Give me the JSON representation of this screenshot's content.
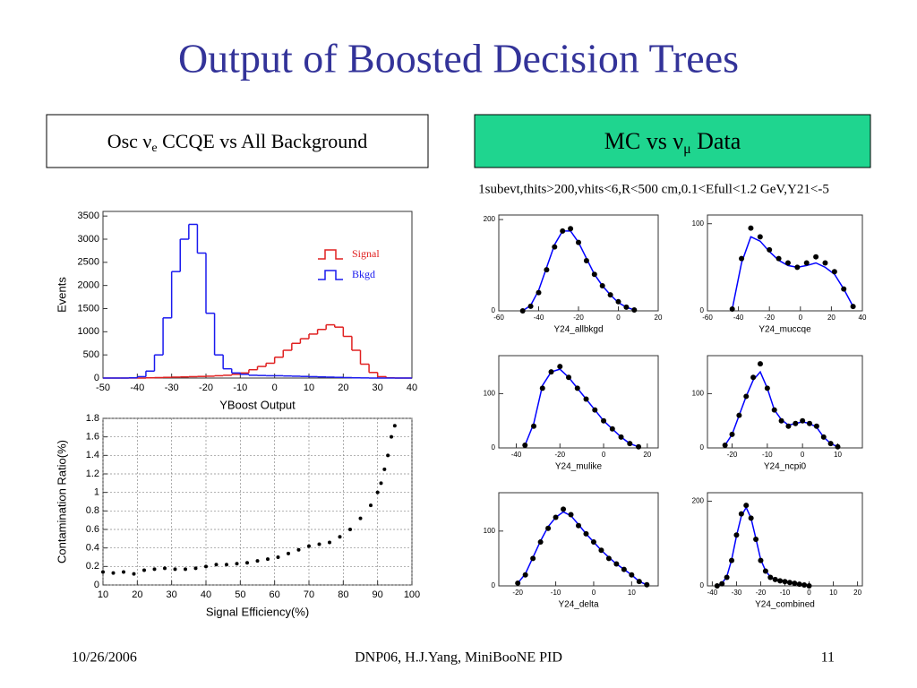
{
  "header": {
    "title": "Output of Boosted Decision Trees",
    "left_box": {
      "prefix": "Osc ν",
      "subscript": "e",
      "suffix": " CCQE vs All Background"
    },
    "right_box": {
      "prefix": "MC vs ν",
      "subscript": "μ",
      "suffix": " Data"
    },
    "cut_text": "1subevt,thits>200,vhits<6,R<500 cm,0.1<Efull<1.2 GeV,Y21<-5"
  },
  "footer": {
    "date": "10/26/2006",
    "center": "DNP06, H.J.Yang,  MiniBooNE PID",
    "page": "11"
  },
  "chart_data": [
    {
      "type": "histogram",
      "xlabel": "YBoost Output",
      "ylabel": "Events",
      "bins": [
        -50,
        -47.5,
        -45,
        -42.5,
        -40,
        -37.5,
        -35,
        -32.5,
        -30,
        -27.5,
        -25,
        -22.5,
        -20,
        -17.5,
        -15,
        -12.5,
        -10,
        -7.5,
        -5,
        -2.5,
        0,
        2.5,
        5,
        7.5,
        10,
        12.5,
        15,
        17.5,
        20,
        22.5,
        25,
        27.5,
        30,
        32.5,
        35,
        37.5,
        40
      ],
      "series": [
        {
          "name": "Signal",
          "color": "#e02020",
          "values": [
            0,
            0,
            0,
            0,
            0,
            5,
            10,
            15,
            20,
            25,
            30,
            35,
            40,
            50,
            60,
            80,
            110,
            180,
            250,
            320,
            450,
            600,
            750,
            850,
            950,
            1050,
            1150,
            1100,
            900,
            600,
            300,
            120,
            30,
            5,
            0,
            0
          ]
        },
        {
          "name": "Bkgd",
          "color": "#1a1aee",
          "values": [
            0,
            0,
            0,
            5,
            30,
            150,
            500,
            1300,
            2300,
            3000,
            3320,
            2700,
            1400,
            500,
            200,
            110,
            80,
            60,
            55,
            50,
            50,
            45,
            40,
            35,
            30,
            25,
            20,
            15,
            10,
            5,
            3,
            0,
            0,
            0,
            0,
            0
          ]
        }
      ],
      "xlim": [
        -50,
        40
      ],
      "xticks": [
        -50,
        -40,
        -30,
        -20,
        -10,
        0,
        10,
        20,
        30,
        40
      ],
      "ylim": [
        0,
        3600
      ],
      "yticks": [
        0,
        500,
        1000,
        1500,
        2000,
        2500,
        3000,
        3500
      ],
      "grid": false,
      "legend": "upper-right"
    },
    {
      "type": "scatter",
      "xlabel": "Signal Efficiency(%)",
      "ylabel": "Contamination Ratio(%)",
      "x": [
        10,
        13,
        16,
        19,
        22,
        25,
        28,
        31,
        34,
        37,
        40,
        43,
        46,
        49,
        52,
        55,
        58,
        61,
        64,
        67,
        70,
        73,
        76,
        79,
        82,
        85,
        88,
        90,
        91,
        92,
        93,
        94,
        95
      ],
      "series": [
        {
          "color": "#000000",
          "mode": "markers",
          "values": [
            0.14,
            0.13,
            0.14,
            0.12,
            0.16,
            0.17,
            0.18,
            0.17,
            0.17,
            0.18,
            0.2,
            0.22,
            0.22,
            0.23,
            0.24,
            0.26,
            0.28,
            0.3,
            0.34,
            0.38,
            0.42,
            0.44,
            0.46,
            0.52,
            0.6,
            0.72,
            0.86,
            1.0,
            1.1,
            1.25,
            1.4,
            1.6,
            1.72
          ]
        }
      ],
      "xlim": [
        10,
        100
      ],
      "xticks": [
        10,
        20,
        30,
        40,
        50,
        60,
        70,
        80,
        90,
        100
      ],
      "ylim": [
        0,
        1.8
      ],
      "yticks": [
        0,
        0.2,
        0.4,
        0.6,
        0.8,
        1,
        1.2,
        1.4,
        1.6,
        1.8
      ],
      "grid": true
    },
    {
      "type": "scatter",
      "xlabel": "Y24_allbkgd",
      "x": [
        -48,
        -44,
        -40,
        -36,
        -32,
        -28,
        -24,
        -20,
        -16,
        -12,
        -8,
        -4,
        0,
        4,
        8
      ],
      "series": [
        {
          "color": "#0000ff",
          "mode": "line",
          "values": [
            0,
            12,
            45,
            95,
            145,
            175,
            175,
            150,
            115,
            80,
            55,
            35,
            18,
            8,
            2
          ]
        },
        {
          "color": "#000000",
          "mode": "markers",
          "values": [
            0,
            10,
            40,
            90,
            140,
            175,
            180,
            150,
            110,
            80,
            55,
            35,
            20,
            8,
            2
          ]
        }
      ],
      "xlim": [
        -60,
        20
      ],
      "xticks": [
        -60,
        -40,
        -20,
        0,
        20
      ],
      "ylim": [
        0,
        210
      ],
      "yticks": [
        0,
        200
      ]
    },
    {
      "type": "scatter",
      "xlabel": "Y24_muccqe",
      "x": [
        -44,
        -38,
        -32,
        -26,
        -20,
        -14,
        -8,
        -2,
        4,
        10,
        16,
        22,
        28,
        34
      ],
      "series": [
        {
          "color": "#0000ff",
          "mode": "line",
          "values": [
            2,
            55,
            85,
            80,
            68,
            58,
            52,
            50,
            52,
            55,
            50,
            42,
            25,
            5
          ]
        },
        {
          "color": "#000000",
          "mode": "markers",
          "values": [
            2,
            60,
            95,
            85,
            70,
            60,
            55,
            50,
            55,
            62,
            55,
            45,
            25,
            5
          ]
        }
      ],
      "xlim": [
        -60,
        40
      ],
      "xticks": [
        -60,
        -40,
        -20,
        0,
        20,
        40
      ],
      "ylim": [
        0,
        110
      ],
      "yticks": [
        0,
        100
      ]
    },
    {
      "type": "scatter",
      "xlabel": "Y24_mulike",
      "x": [
        -36,
        -32,
        -28,
        -24,
        -20,
        -16,
        -12,
        -8,
        -4,
        0,
        4,
        8,
        12,
        16
      ],
      "series": [
        {
          "color": "#0000ff",
          "mode": "line",
          "values": [
            5,
            45,
            115,
            140,
            145,
            130,
            110,
            90,
            70,
            50,
            35,
            20,
            8,
            2
          ]
        },
        {
          "color": "#000000",
          "mode": "markers",
          "values": [
            5,
            40,
            110,
            140,
            150,
            130,
            110,
            90,
            70,
            50,
            35,
            20,
            8,
            2
          ]
        }
      ],
      "xlim": [
        -48,
        25
      ],
      "xticks": [
        -40,
        -20,
        0,
        20
      ],
      "ylim": [
        0,
        170
      ],
      "yticks": [
        0,
        100
      ]
    },
    {
      "type": "scatter",
      "xlabel": "Y24_ncpi0",
      "x": [
        -22,
        -20,
        -18,
        -16,
        -14,
        -12,
        -10,
        -8,
        -6,
        -4,
        -2,
        0,
        2,
        4,
        6,
        8,
        10
      ],
      "series": [
        {
          "color": "#0000ff",
          "mode": "line",
          "values": [
            5,
            25,
            60,
            95,
            125,
            140,
            110,
            70,
            52,
            42,
            45,
            48,
            45,
            38,
            20,
            8,
            2
          ]
        },
        {
          "color": "#000000",
          "mode": "markers",
          "values": [
            5,
            25,
            60,
            95,
            130,
            155,
            110,
            70,
            50,
            40,
            45,
            50,
            45,
            40,
            20,
            8,
            2
          ]
        }
      ],
      "xlim": [
        -27,
        17
      ],
      "xticks": [
        -20,
        -10,
        0,
        10
      ],
      "ylim": [
        0,
        170
      ],
      "yticks": [
        0,
        100
      ]
    },
    {
      "type": "scatter",
      "xlabel": "Y24_delta",
      "x": [
        -20,
        -18,
        -16,
        -14,
        -12,
        -10,
        -8,
        -6,
        -4,
        -2,
        0,
        2,
        4,
        6,
        8,
        10,
        12,
        14
      ],
      "series": [
        {
          "color": "#0000ff",
          "mode": "line",
          "values": [
            5,
            22,
            52,
            82,
            108,
            125,
            135,
            128,
            112,
            95,
            80,
            65,
            52,
            40,
            30,
            20,
            8,
            2
          ]
        },
        {
          "color": "#000000",
          "mode": "markers",
          "values": [
            5,
            20,
            50,
            80,
            105,
            125,
            140,
            130,
            110,
            95,
            80,
            65,
            50,
            40,
            30,
            20,
            8,
            2
          ]
        }
      ],
      "xlim": [
        -25,
        17
      ],
      "xticks": [
        -20,
        -10,
        0,
        10
      ],
      "ylim": [
        0,
        170
      ],
      "yticks": [
        0,
        100
      ]
    },
    {
      "type": "scatter",
      "xlabel": "Y24_combined",
      "x": [
        -38,
        -36,
        -34,
        -32,
        -30,
        -28,
        -26,
        -24,
        -22,
        -20,
        -18,
        -16,
        -14,
        -12,
        -10,
        -8,
        -6,
        -4,
        -2,
        0
      ],
      "series": [
        {
          "color": "#0000ff",
          "mode": "line",
          "values": [
            0,
            6,
            22,
            62,
            118,
            165,
            185,
            160,
            112,
            62,
            36,
            21,
            15,
            12,
            10,
            8,
            6,
            4,
            2,
            0
          ]
        },
        {
          "color": "#000000",
          "mode": "markers",
          "values": [
            0,
            5,
            20,
            60,
            120,
            170,
            190,
            160,
            110,
            60,
            35,
            20,
            15,
            12,
            10,
            8,
            6,
            4,
            2,
            0
          ]
        }
      ],
      "xlim": [
        -42,
        22
      ],
      "xticks": [
        -40,
        -30,
        -20,
        -10,
        0,
        10,
        20
      ],
      "ylim": [
        0,
        220
      ],
      "yticks": [
        0,
        200
      ]
    }
  ]
}
